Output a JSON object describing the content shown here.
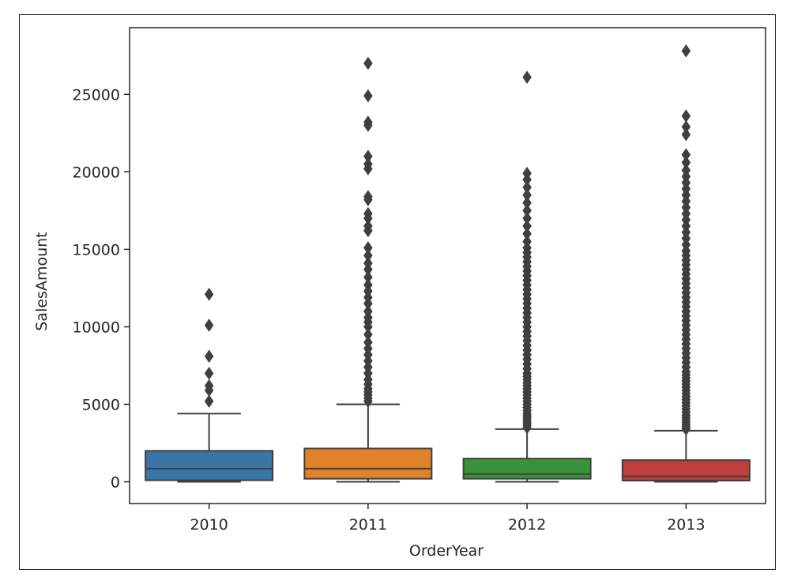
{
  "chart_data": {
    "type": "box",
    "xlabel": "OrderYear",
    "ylabel": "SalesAmount",
    "categories": [
      "2010",
      "2011",
      "2012",
      "2013"
    ],
    "colors": [
      "#3a75a8",
      "#e1812c",
      "#3a923a",
      "#c03d3e"
    ],
    "ylim": [
      -1400,
      29300
    ],
    "yticks": [
      0,
      5000,
      10000,
      15000,
      20000,
      25000
    ],
    "ytick_labels": [
      "0",
      "5000",
      "10000",
      "15000",
      "20000",
      "25000"
    ],
    "grid": false,
    "boxes": [
      {
        "category": "2010",
        "whisker_low": 0,
        "q1": 100,
        "median": 850,
        "q3": 2000,
        "whisker_high": 4400,
        "outliers": [
          5200,
          5900,
          6200,
          7000,
          8100,
          10100,
          12100
        ]
      },
      {
        "category": "2011",
        "whisker_low": 0,
        "q1": 200,
        "median": 850,
        "q3": 2150,
        "whisker_high": 5000,
        "outliers": [
          5200,
          5400,
          5600,
          5800,
          6000,
          6300,
          6600,
          7000,
          7400,
          7800,
          8200,
          8600,
          9000,
          9500,
          10000,
          10300,
          10600,
          11000,
          11500,
          11900,
          12300,
          12700,
          13200,
          13700,
          14100,
          14600,
          15100,
          16200,
          16500,
          17000,
          17300,
          18200,
          18400,
          20200,
          20500,
          21000,
          23000,
          23200,
          24900,
          27000
        ]
      },
      {
        "category": "2012",
        "whisker_low": 0,
        "q1": 200,
        "median": 500,
        "q3": 1500,
        "whisker_high": 3400,
        "outliers": [
          3500,
          3650,
          3800,
          3950,
          4100,
          4250,
          4400,
          4600,
          4800,
          5000,
          5200,
          5400,
          5600,
          5800,
          6000,
          6200,
          6400,
          6600,
          6800,
          7000,
          7300,
          7600,
          7900,
          8200,
          8500,
          8800,
          9100,
          9400,
          9700,
          10000,
          10300,
          10600,
          10900,
          11200,
          11500,
          11800,
          12100,
          12400,
          12700,
          13000,
          13300,
          13600,
          13900,
          14200,
          14500,
          14800,
          15100,
          15500,
          16000,
          16500,
          17000,
          17500,
          18000,
          18500,
          19000,
          19500,
          19900,
          26100
        ]
      },
      {
        "category": "2013",
        "whisker_low": 0,
        "q1": 80,
        "median": 350,
        "q3": 1400,
        "whisker_high": 3300,
        "outliers": [
          3400,
          3550,
          3700,
          3850,
          4000,
          4150,
          4300,
          4500,
          4700,
          4900,
          5100,
          5300,
          5500,
          5700,
          5900,
          6100,
          6300,
          6500,
          6700,
          6900,
          7100,
          7400,
          7700,
          8000,
          8300,
          8600,
          8900,
          9200,
          9500,
          9800,
          10100,
          10400,
          10700,
          11000,
          11300,
          11600,
          11900,
          12200,
          12500,
          12800,
          13100,
          13400,
          13700,
          14000,
          14300,
          14600,
          14900,
          15300,
          15700,
          16100,
          16500,
          16900,
          17300,
          17700,
          18100,
          18500,
          18900,
          19300,
          19700,
          20100,
          20600,
          21100,
          22400,
          22900,
          23600,
          27800
        ]
      }
    ]
  }
}
